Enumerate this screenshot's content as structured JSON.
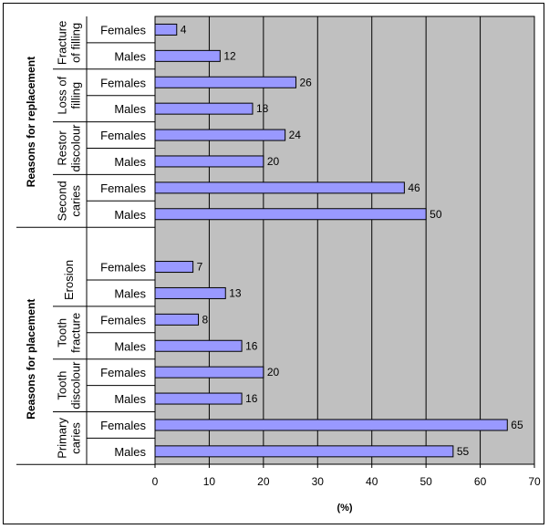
{
  "colors": {
    "bar": "#9999ff",
    "plot_bg": "#c0c0c0",
    "grid": "#000000"
  },
  "chart_data": {
    "type": "bar",
    "orientation": "horizontal",
    "title": "",
    "xlabel": "(%)",
    "ylabel": "",
    "xlim": [
      0,
      70
    ],
    "x_ticks": [
      "0",
      "10",
      "20",
      "30",
      "40",
      "50",
      "60",
      "70"
    ],
    "grid": true,
    "legend": "none",
    "sections": [
      {
        "name": "Reasons for replacement",
        "groups": [
          {
            "name": "Fracture of filling",
            "label_lines": [
              "Fracture",
              "of filling"
            ],
            "bars": [
              {
                "label": "Females",
                "value": 4
              },
              {
                "label": "Males",
                "value": 12
              }
            ]
          },
          {
            "name": "Loss of filling",
            "label_lines": [
              "Loss of",
              "filling"
            ],
            "bars": [
              {
                "label": "Females",
                "value": 26
              },
              {
                "label": "Males",
                "value": 18
              }
            ]
          },
          {
            "name": "Restor discolour",
            "label_lines": [
              "Restor",
              "discolour"
            ],
            "bars": [
              {
                "label": "Females",
                "value": 24
              },
              {
                "label": "Males",
                "value": 20
              }
            ]
          },
          {
            "name": "Second caries",
            "label_lines": [
              "Second",
              "caries"
            ],
            "bars": [
              {
                "label": "Females",
                "value": 46
              },
              {
                "label": "Males",
                "value": 50
              }
            ]
          }
        ]
      },
      {
        "name": "Reasons for placement",
        "groups": [
          {
            "name": "Erosion",
            "label_lines": [
              "Erosion"
            ],
            "bars": [
              {
                "label": "Females",
                "value": 7
              },
              {
                "label": "Males",
                "value": 13
              }
            ]
          },
          {
            "name": "Tooth fracture",
            "label_lines": [
              "Tooth",
              "fracture"
            ],
            "bars": [
              {
                "label": "Females",
                "value": 8
              },
              {
                "label": "Males",
                "value": 16
              }
            ]
          },
          {
            "name": "Tooth discolour",
            "label_lines": [
              "Tooth",
              "discolour"
            ],
            "bars": [
              {
                "label": "Females",
                "value": 20
              },
              {
                "label": "Males",
                "value": 16
              }
            ]
          },
          {
            "name": "Primary caries",
            "label_lines": [
              "Primary",
              "caries"
            ],
            "bars": [
              {
                "label": "Females",
                "value": 65
              },
              {
                "label": "Males",
                "value": 55
              }
            ]
          }
        ]
      }
    ]
  }
}
